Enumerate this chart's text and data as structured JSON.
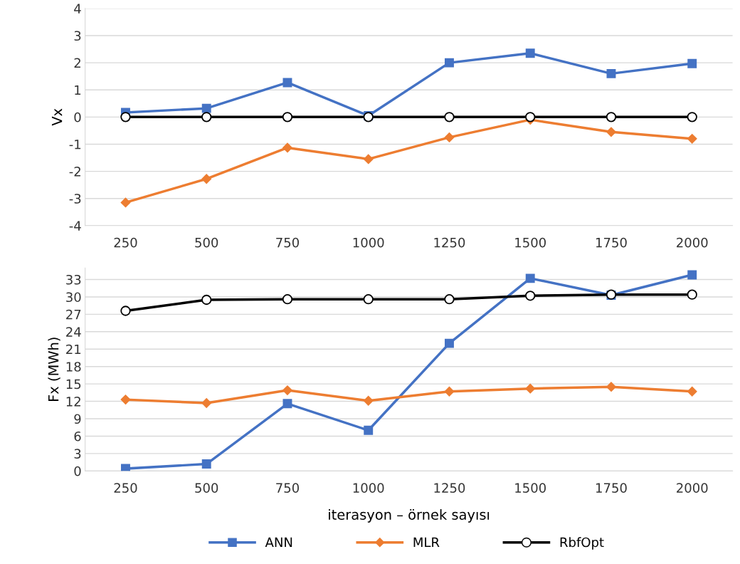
{
  "chart_data": [
    {
      "type": "line",
      "ylabel": "Vx",
      "categories": [
        "250",
        "500",
        "750",
        "1000",
        "1250",
        "1500",
        "1750",
        "2000"
      ],
      "ylim": [
        -4,
        4
      ],
      "yticks": [
        {
          "value": -4,
          "label": "-4"
        },
        {
          "value": -3,
          "label": "-3"
        },
        {
          "value": -2,
          "label": "-2"
        },
        {
          "value": -1,
          "label": "-1"
        },
        0,
        1,
        2,
        3,
        4
      ],
      "grid": "y",
      "legend": "bottom",
      "series": [
        {
          "name": "ANN",
          "color": "#4472c4",
          "marker": "square",
          "values": [
            0.17,
            0.32,
            1.27,
            0.05,
            2.0,
            2.35,
            1.6,
            1.97
          ]
        },
        {
          "name": "MLR",
          "color": "#ed7d31",
          "marker": "diamond",
          "values": [
            -3.15,
            -2.28,
            -1.13,
            -1.55,
            -0.75,
            -0.1,
            -0.55,
            -0.8
          ]
        },
        {
          "name": "RbfOpt",
          "color": "#000000",
          "marker": "circle",
          "values": [
            0,
            0,
            0,
            0,
            0,
            0,
            0,
            0
          ]
        }
      ]
    },
    {
      "type": "line",
      "ylabel": "Fx (MWh)",
      "xlabel": "iterasyon – örnek sayısı",
      "categories": [
        "250",
        "500",
        "750",
        "1000",
        "1250",
        "1500",
        "1750",
        "2000"
      ],
      "ylim": [
        0,
        35
      ],
      "yticks": [
        0,
        3,
        6,
        9,
        12,
        15,
        18,
        21,
        24,
        27,
        30,
        33
      ],
      "grid": "y",
      "series": [
        {
          "color": "#4472c4",
          "marker": "square",
          "values": [
            0.4,
            1.2,
            11.6,
            7.0,
            22.0,
            33.2,
            30.3,
            33.8
          ]
        },
        {
          "color": "#ed7d31",
          "marker": "diamond",
          "values": [
            12.3,
            11.7,
            13.9,
            12.1,
            13.7,
            14.2,
            14.5,
            13.7
          ]
        },
        {
          "color": "#000000",
          "marker": "circle",
          "values": [
            27.6,
            29.5,
            29.6,
            29.6,
            29.6,
            30.2,
            30.4,
            30.4
          ]
        }
      ]
    }
  ]
}
